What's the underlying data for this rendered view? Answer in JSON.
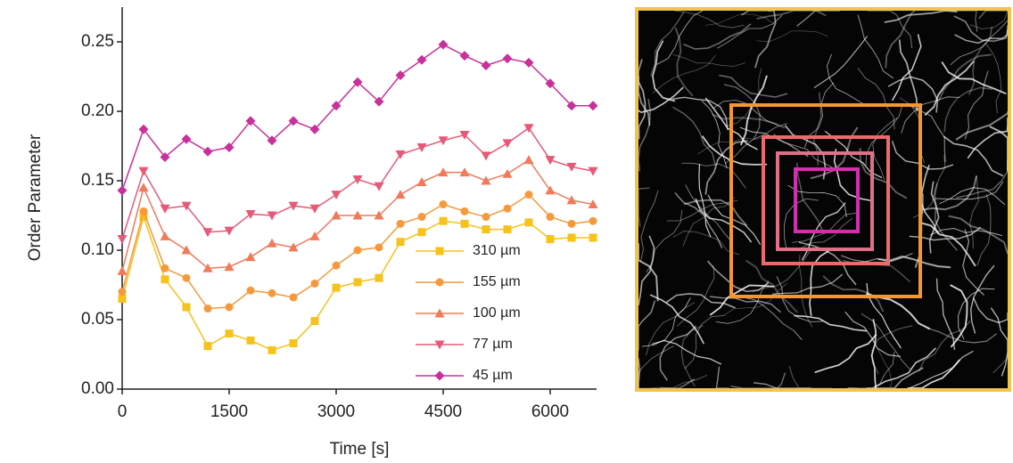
{
  "chart_data": {
    "type": "line",
    "x_label": "Time [s]",
    "y_label": "Order Parameter",
    "x": [
      0,
      300,
      600,
      900,
      1200,
      1500,
      1800,
      2100,
      2400,
      2700,
      3000,
      3300,
      3600,
      3900,
      4200,
      4500,
      4800,
      5100,
      5400,
      5700,
      6000,
      6300,
      6600
    ],
    "xlim": [
      0,
      6650
    ],
    "xticks": [
      0,
      1500,
      3000,
      4500,
      6000
    ],
    "ylim": [
      0,
      0.275
    ],
    "yticks": [
      {
        "value": 0,
        "label": "0.00"
      },
      0.05,
      {
        "value": 0.1,
        "label": "0.10"
      },
      0.15,
      {
        "value": 0.2,
        "label": "0.20"
      },
      0.25
    ],
    "series": [
      {
        "name": "310 µm",
        "color": "#f6c21c",
        "marker": "square",
        "values": [
          0.065,
          0.124,
          0.079,
          0.059,
          0.031,
          0.04,
          0.035,
          0.028,
          0.033,
          0.049,
          0.073,
          0.077,
          0.08,
          0.106,
          0.113,
          0.121,
          0.119,
          0.115,
          0.115,
          0.12,
          0.108,
          0.109,
          0.109
        ]
      },
      {
        "name": "155 µm",
        "color": "#f59a3c",
        "marker": "circle",
        "values": [
          0.07,
          0.128,
          0.087,
          0.08,
          0.058,
          0.059,
          0.071,
          0.069,
          0.066,
          0.076,
          0.089,
          0.1,
          0.102,
          0.119,
          0.124,
          0.133,
          0.128,
          0.124,
          0.13,
          0.14,
          0.124,
          0.119,
          0.121
        ]
      },
      {
        "name": "100 µm",
        "color": "#f07a5a",
        "marker": "triangle-up",
        "values": [
          0.085,
          0.145,
          0.11,
          0.1,
          0.087,
          0.088,
          0.095,
          0.105,
          0.102,
          0.11,
          0.125,
          0.125,
          0.125,
          0.14,
          0.149,
          0.156,
          0.156,
          0.15,
          0.155,
          0.165,
          0.143,
          0.136,
          0.133
        ]
      },
      {
        "name": "77 µm",
        "color": "#e65a78",
        "marker": "triangle-down",
        "values": [
          0.108,
          0.157,
          0.13,
          0.132,
          0.113,
          0.114,
          0.126,
          0.125,
          0.132,
          0.13,
          0.14,
          0.151,
          0.146,
          0.169,
          0.174,
          0.179,
          0.183,
          0.168,
          0.177,
          0.188,
          0.165,
          0.16,
          0.157
        ]
      },
      {
        "name": "45 µm",
        "color": "#c8309a",
        "marker": "diamond",
        "values": [
          0.143,
          0.187,
          0.167,
          0.18,
          0.171,
          0.174,
          0.193,
          0.179,
          0.193,
          0.187,
          0.204,
          0.221,
          0.207,
          0.226,
          0.237,
          0.248,
          0.24,
          0.233,
          0.238,
          0.235,
          0.22,
          0.204,
          0.204
        ]
      }
    ]
  }
}
